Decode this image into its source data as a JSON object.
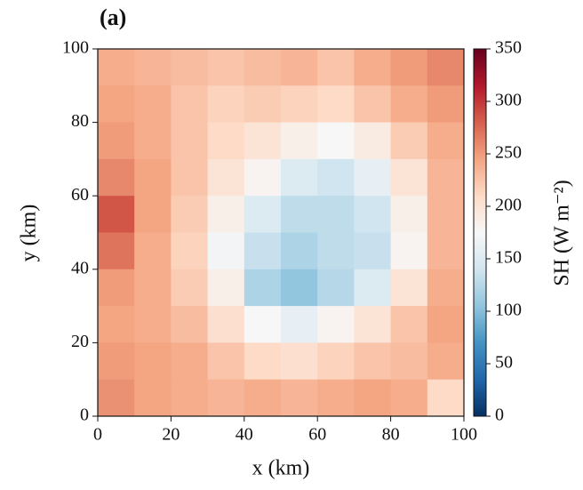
{
  "chart_data": {
    "type": "heatmap",
    "title": "(a)",
    "x_label": "x (km)",
    "y_label": "y (km)",
    "colorbar_label": "SH (W m⁻²)",
    "xlim": [
      0,
      100
    ],
    "ylim": [
      0,
      100
    ],
    "xticks": [
      0,
      20,
      40,
      60,
      80,
      100
    ],
    "yticks": [
      0,
      20,
      40,
      60,
      80,
      100
    ],
    "zlim": [
      0,
      350
    ],
    "zticks": [
      0,
      50,
      100,
      150,
      200,
      250,
      300,
      350
    ],
    "colorscale": [
      "#053061",
      "#2166ac",
      "#4393c3",
      "#92c5de",
      "#d1e5f0",
      "#f7f7f7",
      "#fddbc7",
      "#f4a582",
      "#d6604d",
      "#b2182b",
      "#67001f"
    ],
    "z": [
      [
        240,
        235,
        230,
        225,
        230,
        235,
        225,
        240,
        250,
        260
      ],
      [
        245,
        240,
        225,
        215,
        220,
        215,
        210,
        225,
        240,
        250
      ],
      [
        250,
        240,
        225,
        210,
        200,
        185,
        175,
        190,
        220,
        240
      ],
      [
        260,
        245,
        225,
        200,
        180,
        150,
        140,
        160,
        200,
        235
      ],
      [
        285,
        245,
        220,
        185,
        150,
        130,
        130,
        140,
        185,
        235
      ],
      [
        270,
        240,
        215,
        170,
        135,
        120,
        130,
        135,
        180,
        235
      ],
      [
        250,
        240,
        220,
        185,
        120,
        105,
        125,
        150,
        200,
        240
      ],
      [
        245,
        240,
        230,
        205,
        175,
        160,
        180,
        200,
        225,
        245
      ],
      [
        250,
        245,
        240,
        225,
        210,
        205,
        215,
        225,
        230,
        240
      ],
      [
        255,
        245,
        240,
        235,
        240,
        235,
        240,
        245,
        240,
        210
      ]
    ]
  }
}
